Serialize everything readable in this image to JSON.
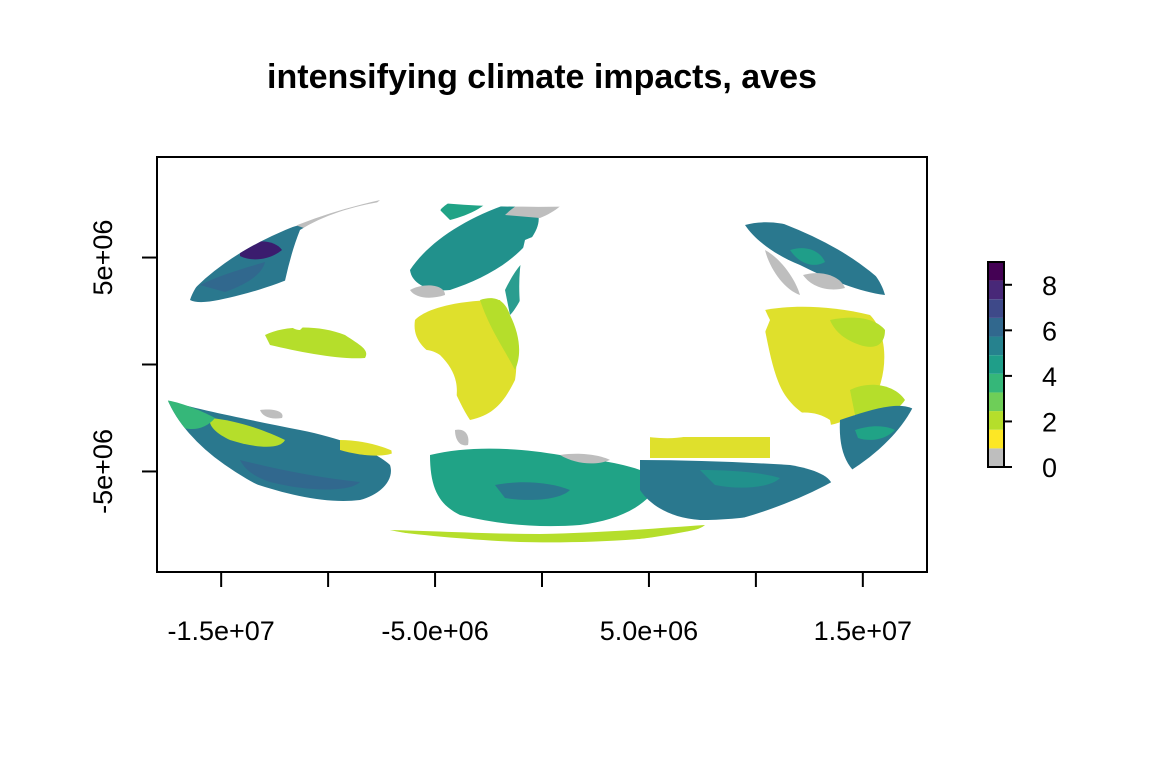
{
  "map": {
    "title": "intensifying climate impacts, aves",
    "x_axis": {
      "ticks": [
        -15000000,
        -10000000,
        -5000000,
        0,
        5000000,
        10000000,
        15000000
      ],
      "labels": [
        "-1.5e+07",
        "-5.0e+06",
        "5.0e+06",
        "1.5e+07"
      ],
      "labelled_ticks": [
        -15000000,
        -5000000,
        5000000,
        15000000
      ]
    },
    "y_axis": {
      "ticks": [
        5000000,
        0,
        -5000000
      ],
      "labels": [
        "5e+06",
        "-5e+06"
      ],
      "labelled_ticks": [
        5000000,
        -5000000
      ]
    },
    "extent": {
      "xlim": [
        -18000000,
        18000000
      ],
      "ylim": [
        -9700000,
        9700000
      ]
    },
    "legend": {
      "labels": [
        "0",
        "2",
        "4",
        "6",
        "8"
      ],
      "values": [
        0,
        2,
        4,
        6,
        8
      ],
      "range": [
        0,
        9
      ],
      "colors": [
        "#bebebe",
        "#fde725",
        "#b5de2b",
        "#6ece58",
        "#35b779",
        "#1f9e89",
        "#26828e",
        "#31688e",
        "#3e4989",
        "#482878",
        "#440154"
      ]
    },
    "colors": {
      "na": "#bebebe",
      "low": "#dfe02c",
      "mid": "#20a386",
      "high": "#2a788e",
      "max": "#3b1c6e"
    }
  }
}
